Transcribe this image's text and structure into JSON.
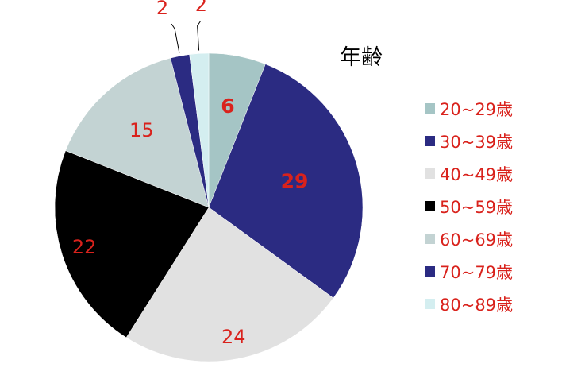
{
  "chart_data": {
    "type": "pie",
    "title": "年齢",
    "legend_position": "right",
    "slices": [
      {
        "label": "20~29歳",
        "value": 6,
        "color": "#a5c5c5",
        "label_color": "#d9221c",
        "bold": true
      },
      {
        "label": "30~39歳",
        "value": 29,
        "color": "#2b2b82",
        "label_color": "#d9221c",
        "bold": true
      },
      {
        "label": "40~49歳",
        "value": 24,
        "color": "#e1e1e1",
        "label_color": "#d9221c",
        "bold": false
      },
      {
        "label": "50~59歳",
        "value": 22,
        "color": "#000000",
        "label_color": "#d9221c",
        "bold": false
      },
      {
        "label": "60~69歳",
        "value": 15,
        "color": "#c3d3d3",
        "label_color": "#d9221c",
        "bold": false
      },
      {
        "label": "70~79歳",
        "value": 2,
        "color": "#2b2b82",
        "label_color": "#d9221c",
        "bold": false
      },
      {
        "label": "80~89歳",
        "value": 2,
        "color": "#d4eef0",
        "label_color": "#d9221c",
        "bold": false
      }
    ]
  }
}
